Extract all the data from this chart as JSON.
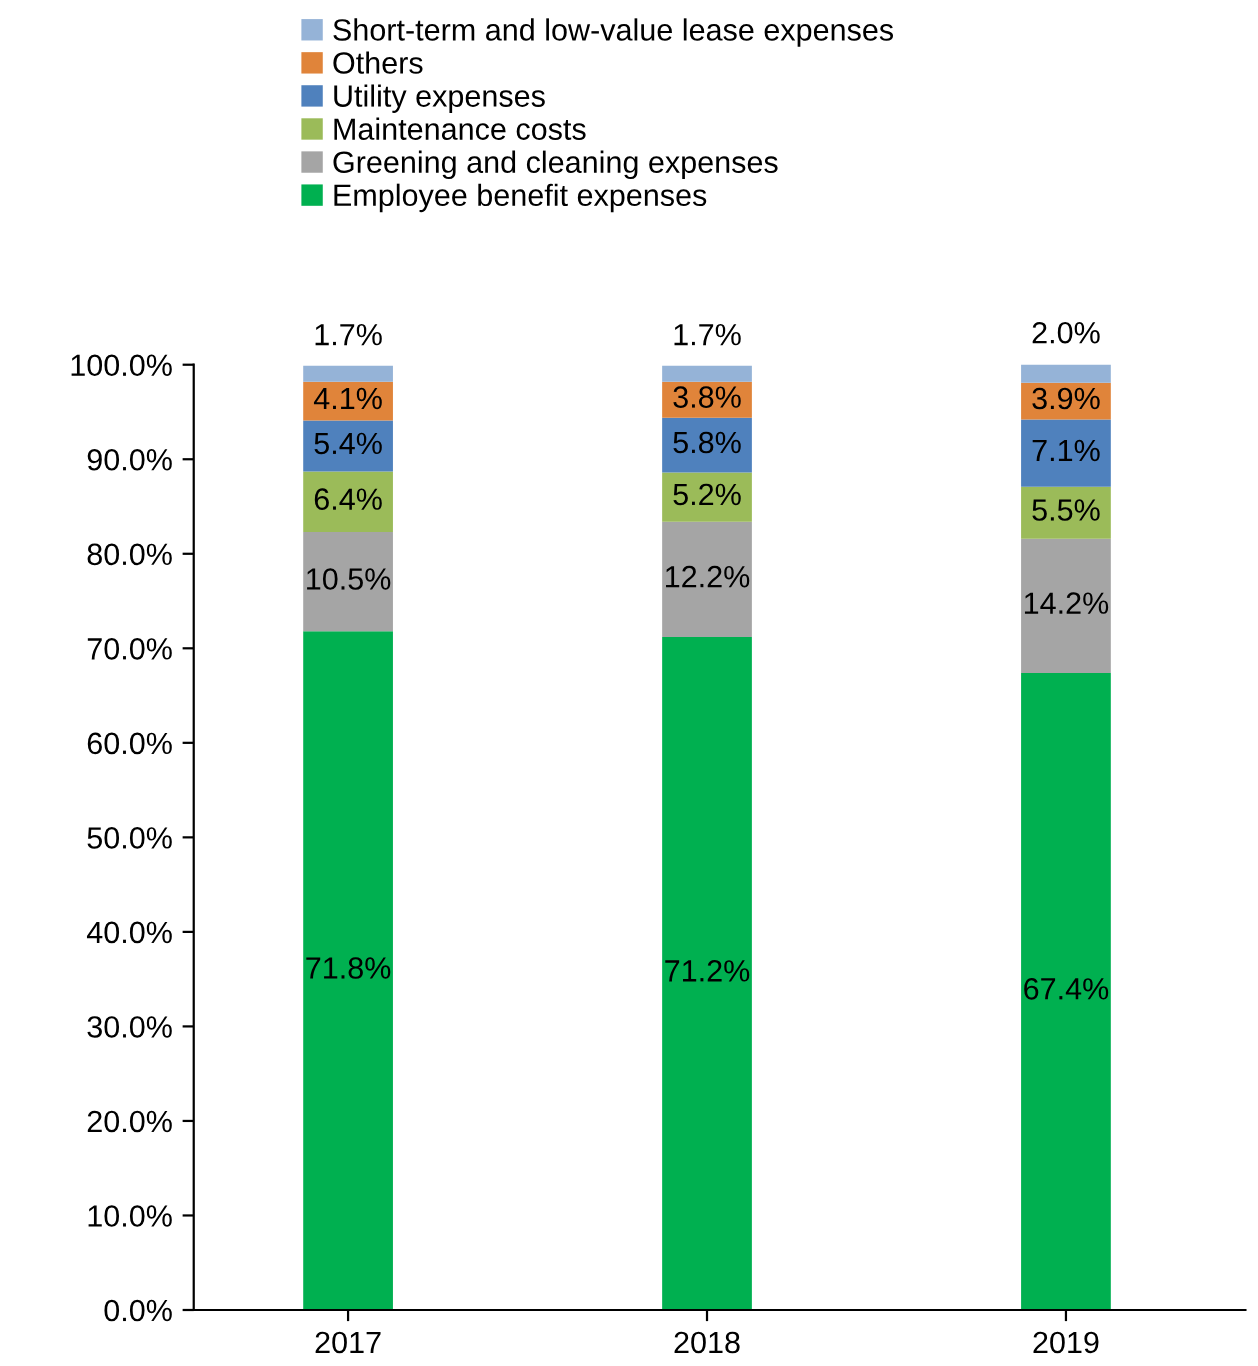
{
  "chart_data": {
    "type": "bar",
    "stacked": true,
    "categories": [
      "2017",
      "2018",
      "2019"
    ],
    "series": [
      {
        "name": "Employee benefit expenses",
        "color": "#00b050",
        "values": [
          71.8,
          71.2,
          67.4
        ],
        "value_labels": [
          "71.8%",
          "71.2%",
          "67.4%"
        ]
      },
      {
        "name": "Greening and cleaning expenses",
        "color": "#a5a5a5",
        "values": [
          10.5,
          12.2,
          14.2
        ],
        "value_labels": [
          "10.5%",
          "12.2%",
          "14.2%"
        ]
      },
      {
        "name": "Maintenance costs",
        "color": "#9bbb59",
        "values": [
          6.4,
          5.2,
          5.5
        ],
        "value_labels": [
          "6.4%",
          "5.2%",
          "5.5%"
        ]
      },
      {
        "name": "Utility expenses",
        "color": "#4f81bd",
        "values": [
          5.4,
          5.8,
          7.1
        ],
        "value_labels": [
          "5.4%",
          "5.8%",
          "7.1%"
        ]
      },
      {
        "name": "Others",
        "color": "#e0843a",
        "values": [
          4.1,
          3.8,
          3.9
        ],
        "value_labels": [
          "4.1%",
          "3.8%",
          "3.9%"
        ]
      },
      {
        "name": "Short-term and low-value lease expenses",
        "color": "#95b3d7",
        "values": [
          1.7,
          1.7,
          2.0
        ],
        "value_labels": [
          "1.7%",
          "1.7%",
          "2.0%"
        ]
      }
    ],
    "ylim": [
      0,
      100
    ],
    "yticks": [
      {
        "value": 0,
        "label": "0.0%"
      },
      {
        "value": 10,
        "label": "10.0%"
      },
      {
        "value": 20,
        "label": "20.0%"
      },
      {
        "value": 30,
        "label": "30.0%"
      },
      {
        "value": 40,
        "label": "40.0%"
      },
      {
        "value": 50,
        "label": "50.0%"
      },
      {
        "value": 60,
        "label": "60.0%"
      },
      {
        "value": 70,
        "label": "70.0%"
      },
      {
        "value": 80,
        "label": "80.0%"
      },
      {
        "value": 90,
        "label": "90.0%"
      },
      {
        "value": 100,
        "label": "100.0%"
      }
    ],
    "legend": "top",
    "grid": false
  }
}
